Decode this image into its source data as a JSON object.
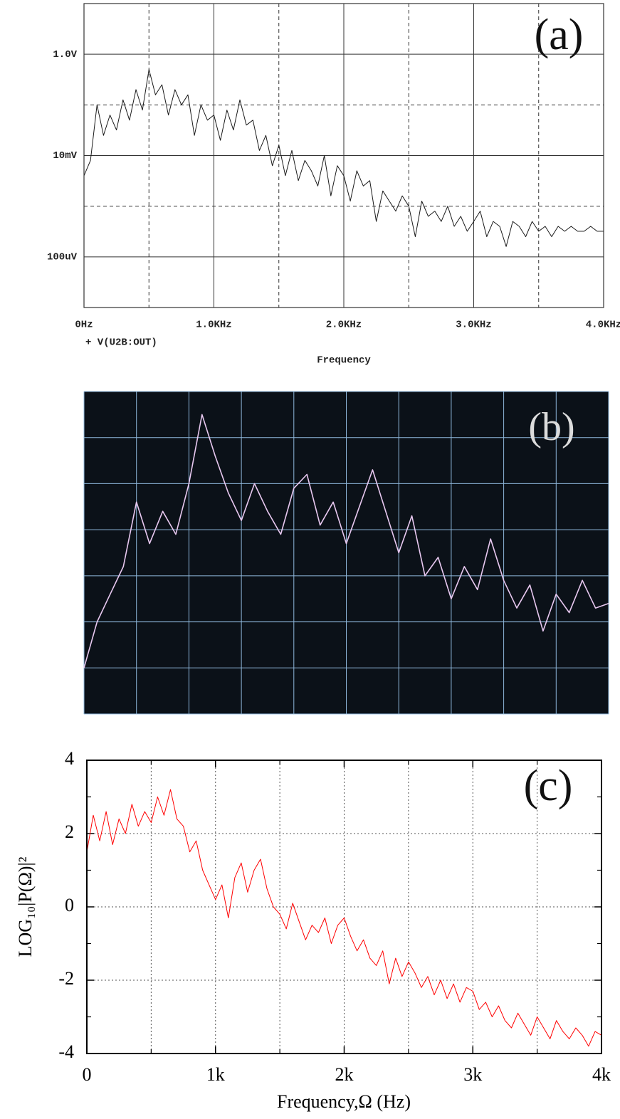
{
  "chart_data": [
    {
      "type": "line",
      "annotation": "(a)",
      "legend_label": "+ V(U2B:OUT)",
      "x_label": "Frequency",
      "color": "#1a1a1a",
      "log_y": true,
      "grid": true,
      "xlim": [
        0,
        4000
      ],
      "ylim": [
        1e-05,
        10
      ],
      "xticks": [
        {
          "value": 0,
          "label": "0Hz"
        },
        {
          "value": 1000,
          "label": "1.0KHz"
        },
        {
          "value": 2000,
          "label": "2.0KHz"
        },
        {
          "value": 3000,
          "label": "3.0KHz"
        },
        {
          "value": 4000,
          "label": "4.0KHz"
        }
      ],
      "yticks": [
        {
          "value": 1,
          "label": "1.0V"
        },
        {
          "value": 0.01,
          "label": "10mV"
        },
        {
          "value": 0.0001,
          "label": "100uV"
        }
      ],
      "xgrid_minor": [
        500,
        1500,
        2500,
        3500
      ],
      "ygrid_minor": [
        0.1,
        0.001
      ],
      "x": [
        0,
        50,
        100,
        150,
        200,
        250,
        300,
        350,
        400,
        450,
        500,
        550,
        600,
        650,
        700,
        750,
        800,
        850,
        900,
        950,
        1000,
        1050,
        1100,
        1150,
        1200,
        1250,
        1300,
        1350,
        1400,
        1450,
        1500,
        1550,
        1600,
        1650,
        1700,
        1750,
        1800,
        1850,
        1900,
        1950,
        2000,
        2050,
        2100,
        2150,
        2200,
        2250,
        2300,
        2350,
        2400,
        2450,
        2500,
        2550,
        2600,
        2650,
        2700,
        2750,
        2800,
        2850,
        2900,
        2950,
        3000,
        3050,
        3100,
        3150,
        3200,
        3250,
        3300,
        3350,
        3400,
        3450,
        3500,
        3550,
        3600,
        3650,
        3700,
        3750,
        3800,
        3850,
        3900,
        3950,
        4000
      ],
      "values": [
        0.004,
        0.008,
        0.1,
        0.025,
        0.063,
        0.032,
        0.126,
        0.05,
        0.2,
        0.079,
        0.5,
        0.158,
        0.25,
        0.063,
        0.2,
        0.1,
        0.158,
        0.025,
        0.1,
        0.05,
        0.063,
        0.02,
        0.079,
        0.032,
        0.126,
        0.04,
        0.05,
        0.0126,
        0.025,
        0.0063,
        0.016,
        0.004,
        0.0126,
        0.0032,
        0.008,
        0.005,
        0.0025,
        0.01,
        0.0016,
        0.0063,
        0.004,
        0.00126,
        0.005,
        0.0025,
        0.0032,
        0.0005,
        0.002,
        0.00126,
        0.0008,
        0.0016,
        0.001,
        0.00025,
        0.00126,
        0.00063,
        0.0008,
        0.0005,
        0.001,
        0.0004,
        0.00063,
        0.00032,
        0.0005,
        0.0008,
        0.00025,
        0.0005,
        0.0004,
        0.00016,
        0.0005,
        0.0004,
        0.00025,
        0.0005,
        0.00032,
        0.0004,
        0.00025,
        0.0004,
        0.00032,
        0.0004,
        0.00032,
        0.00032,
        0.0004,
        0.00032,
        0.00032
      ]
    },
    {
      "type": "line",
      "annotation": "(b)",
      "color": "#e8c8f0",
      "background": "#0b1118",
      "grid_color": "#8fb8dc",
      "show_tick_labels": false,
      "grid": true,
      "xlim": [
        0,
        10
      ],
      "ylim": [
        0,
        7
      ],
      "xticks": [
        0,
        1,
        2,
        3,
        4,
        5,
        6,
        7,
        8,
        9,
        10
      ],
      "yticks": [
        0,
        1,
        2,
        3,
        4,
        5,
        6,
        7
      ],
      "x": [
        0,
        0.25,
        0.5,
        0.75,
        1,
        1.25,
        1.5,
        1.75,
        2,
        2.25,
        2.5,
        2.75,
        3,
        3.25,
        3.5,
        3.75,
        4,
        4.25,
        4.5,
        4.75,
        5,
        5.25,
        5.5,
        5.75,
        6,
        6.25,
        6.5,
        6.75,
        7,
        7.25,
        7.5,
        7.75,
        8,
        8.25,
        8.5,
        8.75,
        9,
        9.25,
        9.5,
        9.75,
        10
      ],
      "values": [
        1.0,
        2.0,
        2.6,
        3.2,
        4.6,
        3.7,
        4.4,
        3.9,
        5.0,
        6.5,
        5.6,
        4.8,
        4.2,
        5.0,
        4.4,
        3.9,
        4.9,
        5.2,
        4.1,
        4.6,
        3.7,
        4.5,
        5.3,
        4.4,
        3.5,
        4.3,
        3.0,
        3.4,
        2.5,
        3.2,
        2.7,
        3.8,
        2.9,
        2.3,
        2.8,
        1.8,
        2.6,
        2.2,
        2.9,
        2.3,
        2.4
      ]
    },
    {
      "type": "line",
      "annotation": "(c)",
      "x_label": "Frequency,Ω (Hz)",
      "y_label": "LOG₁₀|P(Ω)|²",
      "color": "#ff0000",
      "grid": true,
      "xlim": [
        0,
        4000
      ],
      "ylim": [
        -4,
        4
      ],
      "xticks": [
        0,
        {
          "value": 1000,
          "label": "1k"
        },
        {
          "value": 2000,
          "label": "2k"
        },
        {
          "value": 3000,
          "label": "3k"
        },
        {
          "value": 4000,
          "label": "4k"
        }
      ],
      "yticks": [
        -4,
        -2,
        0,
        2,
        4
      ],
      "xgrid_minor": [
        500,
        1500,
        2500,
        3500
      ],
      "yminor_ticks": [
        -3,
        -1,
        1,
        3
      ],
      "x": [
        0,
        50,
        100,
        150,
        200,
        250,
        300,
        350,
        400,
        450,
        500,
        550,
        600,
        650,
        700,
        750,
        800,
        850,
        900,
        950,
        1000,
        1050,
        1100,
        1150,
        1200,
        1250,
        1300,
        1350,
        1400,
        1450,
        1500,
        1550,
        1600,
        1650,
        1700,
        1750,
        1800,
        1850,
        1900,
        1950,
        2000,
        2050,
        2100,
        2150,
        2200,
        2250,
        2300,
        2350,
        2400,
        2450,
        2500,
        2550,
        2600,
        2650,
        2700,
        2750,
        2800,
        2850,
        2900,
        2950,
        3000,
        3050,
        3100,
        3150,
        3200,
        3250,
        3300,
        3350,
        3400,
        3450,
        3500,
        3550,
        3600,
        3650,
        3700,
        3750,
        3800,
        3850,
        3900,
        3950,
        4000
      ],
      "values": [
        1.5,
        2.5,
        1.8,
        2.6,
        1.7,
        2.4,
        2.0,
        2.8,
        2.2,
        2.6,
        2.3,
        3.0,
        2.5,
        3.2,
        2.4,
        2.2,
        1.5,
        1.8,
        1.0,
        0.6,
        0.2,
        0.6,
        -0.3,
        0.8,
        1.2,
        0.4,
        1.0,
        1.3,
        0.5,
        0,
        -0.2,
        -0.6,
        0.1,
        -0.4,
        -0.9,
        -0.5,
        -0.7,
        -0.3,
        -1.0,
        -0.5,
        -0.3,
        -0.8,
        -1.2,
        -0.9,
        -1.4,
        -1.6,
        -1.2,
        -2.1,
        -1.4,
        -1.9,
        -1.5,
        -1.8,
        -2.2,
        -1.9,
        -2.4,
        -2.0,
        -2.5,
        -2.1,
        -2.6,
        -2.2,
        -2.3,
        -2.8,
        -2.6,
        -3.0,
        -2.7,
        -3.1,
        -3.3,
        -2.9,
        -3.2,
        -3.5,
        -3.0,
        -3.3,
        -3.6,
        -3.1,
        -3.4,
        -3.6,
        -3.3,
        -3.5,
        -3.8,
        -3.4,
        -3.5
      ]
    }
  ]
}
